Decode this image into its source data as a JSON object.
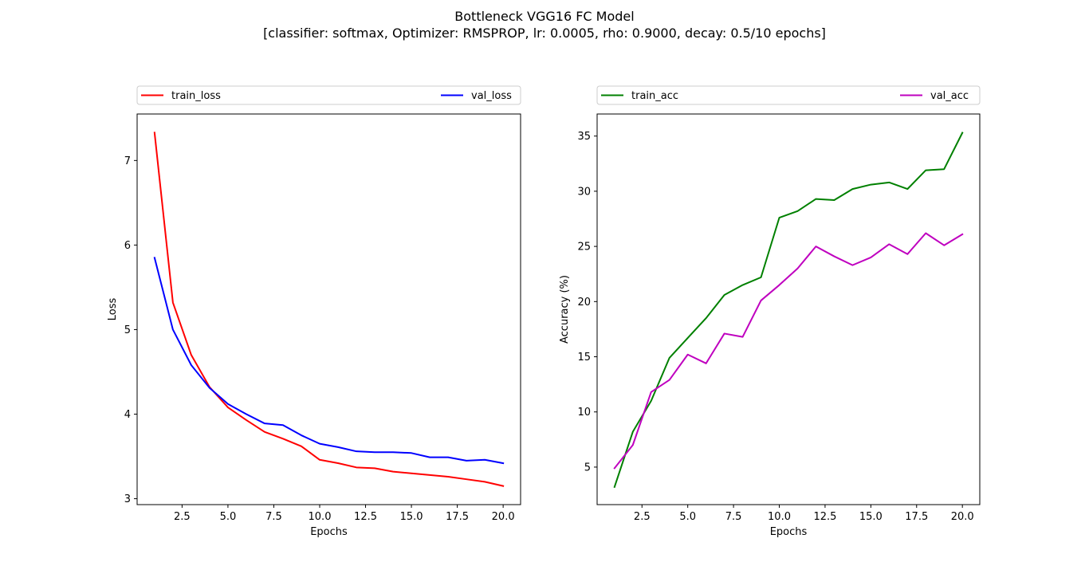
{
  "figure": {
    "title_line1": "Bottleneck VGG16 FC Model",
    "title_line2": "[classifier: softmax, Optimizer: RMSPROP, lr: 0.0005, rho: 0.9000, decay: 0.5/10 epochs]"
  },
  "chart_data": [
    {
      "type": "line",
      "xlabel": "Epochs",
      "ylabel": "Loss",
      "xlim": [
        0.05,
        20.95
      ],
      "ylim": [
        2.93,
        7.55
      ],
      "xticks": [
        2.5,
        5.0,
        7.5,
        10.0,
        12.5,
        15.0,
        17.5,
        20.0
      ],
      "xtick_labels": [
        "2.5",
        "5.0",
        "7.5",
        "10.0",
        "12.5",
        "15.0",
        "17.5",
        "20.0"
      ],
      "yticks": [
        3,
        4,
        5,
        6,
        7
      ],
      "ytick_labels": [
        "3",
        "4",
        "5",
        "6",
        "7"
      ],
      "grid": false,
      "legend_placement": "top (above axes, spanning)",
      "x": [
        1,
        2,
        3,
        4,
        5,
        6,
        7,
        8,
        9,
        10,
        11,
        12,
        13,
        14,
        15,
        16,
        17,
        18,
        19,
        20
      ],
      "series": [
        {
          "name": "train_loss",
          "color": "#ff0000",
          "values": [
            7.33,
            5.32,
            4.7,
            4.32,
            4.08,
            3.93,
            3.79,
            3.71,
            3.62,
            3.46,
            3.42,
            3.37,
            3.36,
            3.32,
            3.3,
            3.28,
            3.26,
            3.23,
            3.2,
            3.15
          ]
        },
        {
          "name": "val_loss",
          "color": "#0000ff",
          "values": [
            5.85,
            5.0,
            4.58,
            4.31,
            4.12,
            4.0,
            3.89,
            3.87,
            3.75,
            3.65,
            3.61,
            3.56,
            3.55,
            3.55,
            3.54,
            3.49,
            3.49,
            3.45,
            3.46,
            3.42
          ]
        }
      ]
    },
    {
      "type": "line",
      "xlabel": "Epochs",
      "ylabel": "Accuracy (%)",
      "xlim": [
        0.05,
        20.95
      ],
      "ylim": [
        1.6,
        37.0
      ],
      "xticks": [
        2.5,
        5.0,
        7.5,
        10.0,
        12.5,
        15.0,
        17.5,
        20.0
      ],
      "xtick_labels": [
        "2.5",
        "5.0",
        "7.5",
        "10.0",
        "12.5",
        "15.0",
        "17.5",
        "20.0"
      ],
      "yticks": [
        5,
        10,
        15,
        20,
        25,
        30,
        35
      ],
      "ytick_labels": [
        "5",
        "10",
        "15",
        "20",
        "25",
        "30",
        "35"
      ],
      "grid": false,
      "legend_placement": "top (above axes, spanning)",
      "x": [
        1,
        2,
        3,
        4,
        5,
        6,
        7,
        8,
        9,
        10,
        11,
        12,
        13,
        14,
        15,
        16,
        17,
        18,
        19,
        20
      ],
      "series": [
        {
          "name": "train_acc",
          "color": "#008000",
          "values": [
            3.2,
            8.2,
            11.0,
            14.9,
            16.7,
            18.5,
            20.6,
            21.5,
            22.2,
            27.6,
            28.2,
            29.3,
            29.2,
            30.2,
            30.6,
            30.8,
            30.2,
            31.9,
            32.0,
            35.3
          ]
        },
        {
          "name": "val_acc",
          "color": "#bf00bf",
          "values": [
            4.9,
            7.0,
            11.8,
            12.9,
            15.2,
            14.4,
            17.1,
            16.8,
            20.1,
            21.5,
            23.0,
            25.0,
            24.1,
            23.3,
            24.0,
            25.2,
            24.3,
            26.2,
            25.1,
            26.1
          ]
        }
      ]
    }
  ]
}
